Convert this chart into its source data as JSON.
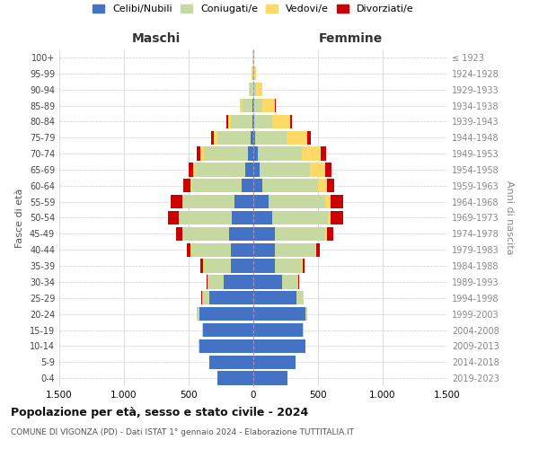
{
  "age_groups": [
    "0-4",
    "5-9",
    "10-14",
    "15-19",
    "20-24",
    "25-29",
    "30-34",
    "35-39",
    "40-44",
    "45-49",
    "50-54",
    "55-59",
    "60-64",
    "65-69",
    "70-74",
    "75-79",
    "80-84",
    "85-89",
    "90-94",
    "95-99",
    "100+"
  ],
  "birth_years": [
    "2019-2023",
    "2014-2018",
    "2009-2013",
    "2004-2008",
    "1999-2003",
    "1994-1998",
    "1989-1993",
    "1984-1988",
    "1979-1983",
    "1974-1978",
    "1969-1973",
    "1964-1968",
    "1959-1963",
    "1954-1958",
    "1949-1953",
    "1944-1948",
    "1939-1943",
    "1934-1938",
    "1929-1933",
    "1924-1928",
    "≤ 1923"
  ],
  "males": {
    "celibe": [
      280,
      340,
      420,
      390,
      420,
      340,
      230,
      175,
      175,
      185,
      170,
      145,
      90,
      65,
      45,
      22,
      8,
      4,
      2,
      1,
      1
    ],
    "coniugato": [
      0,
      0,
      2,
      5,
      15,
      55,
      120,
      210,
      305,
      360,
      400,
      395,
      385,
      380,
      340,
      255,
      165,
      80,
      25,
      7,
      2
    ],
    "vedovo": [
      0,
      0,
      0,
      0,
      0,
      1,
      2,
      3,
      5,
      5,
      6,
      8,
      12,
      20,
      25,
      30,
      22,
      18,
      7,
      3,
      1
    ],
    "divorziato": [
      0,
      0,
      0,
      0,
      2,
      5,
      10,
      20,
      28,
      48,
      82,
      88,
      52,
      38,
      28,
      18,
      10,
      4,
      1,
      0,
      0
    ]
  },
  "females": {
    "nubile": [
      265,
      325,
      400,
      385,
      400,
      330,
      225,
      170,
      165,
      165,
      145,
      115,
      72,
      48,
      32,
      15,
      5,
      3,
      1,
      1,
      1
    ],
    "coniugata": [
      0,
      0,
      2,
      5,
      15,
      55,
      120,
      205,
      315,
      390,
      432,
      438,
      425,
      390,
      340,
      240,
      140,
      65,
      18,
      4,
      1
    ],
    "vedova": [
      0,
      0,
      0,
      0,
      0,
      1,
      2,
      4,
      7,
      12,
      22,
      42,
      72,
      115,
      148,
      162,
      140,
      100,
      52,
      14,
      4
    ],
    "divorziata": [
      0,
      0,
      0,
      0,
      2,
      5,
      10,
      20,
      28,
      52,
      92,
      100,
      58,
      52,
      40,
      25,
      16,
      6,
      1,
      0,
      0
    ]
  },
  "colors": {
    "celibe": "#4472C4",
    "coniugato": "#C5D9A0",
    "vedovo": "#FFD966",
    "divorziato": "#CC0000"
  },
  "title": "Popolazione per età, sesso e stato civile - 2024",
  "subtitle": "COMUNE DI VIGONZA (PD) - Dati ISTAT 1° gennaio 2024 - Elaborazione TUTTITALIA.IT",
  "xlabel_left": "Maschi",
  "xlabel_right": "Femmine",
  "ylabel_left": "Fasce di età",
  "ylabel_right": "Anni di nascita",
  "xlim": 1500,
  "legend_labels": [
    "Celibi/Nubili",
    "Coniugati/e",
    "Vedovi/e",
    "Divorziati/e"
  ],
  "background_color": "#ffffff",
  "grid_color": "#cccccc"
}
